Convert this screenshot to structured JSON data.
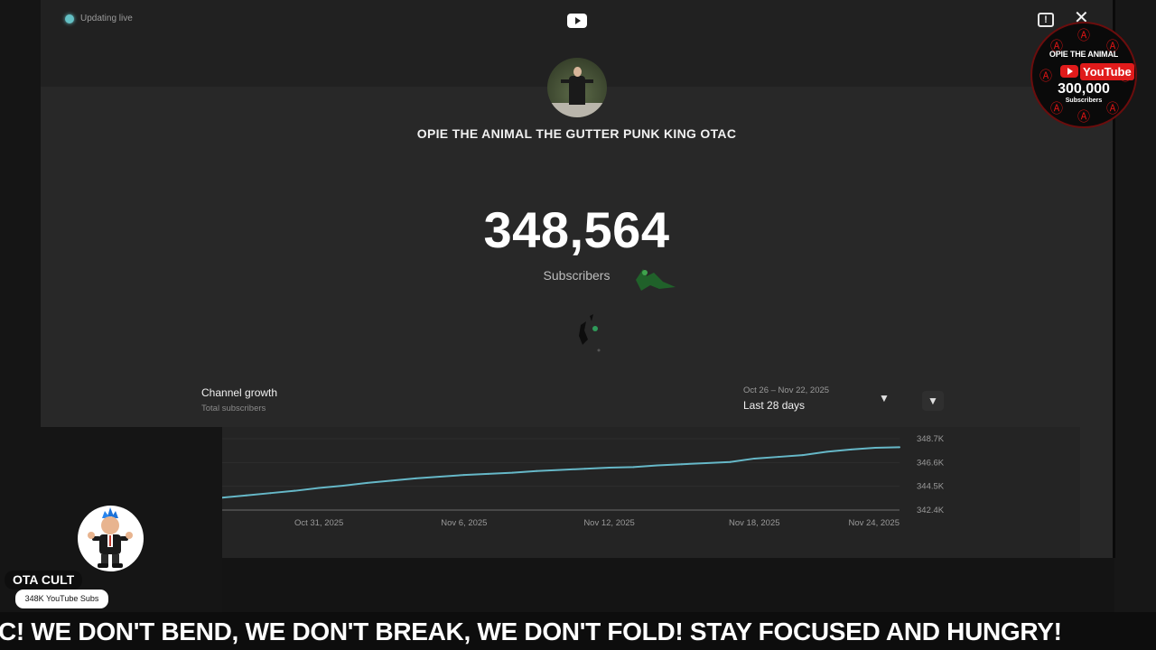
{
  "status": {
    "live_text": "Updating live"
  },
  "channel": {
    "name": "OPIE THE ANIMAL THE GUTTER PUNK KING OTAC",
    "subscriber_count": "348,564",
    "subscriber_label": "Subscribers"
  },
  "growth": {
    "title": "Channel growth",
    "subtitle": "Total subscribers",
    "date_range": "Oct 26 – Nov 22, 2025",
    "period": "Last 28 days"
  },
  "chart_data": {
    "type": "line",
    "x": [
      "Oct 27, 2025",
      "Oct 28, 2025",
      "Oct 29, 2025",
      "Oct 30, 2025",
      "Oct 31, 2025",
      "Nov 1, 2025",
      "Nov 2, 2025",
      "Nov 3, 2025",
      "Nov 4, 2025",
      "Nov 5, 2025",
      "Nov 6, 2025",
      "Nov 7, 2025",
      "Nov 8, 2025",
      "Nov 9, 2025",
      "Nov 10, 2025",
      "Nov 11, 2025",
      "Nov 12, 2025",
      "Nov 13, 2025",
      "Nov 14, 2025",
      "Nov 15, 2025",
      "Nov 16, 2025",
      "Nov 17, 2025",
      "Nov 18, 2025",
      "Nov 19, 2025",
      "Nov 20, 2025",
      "Nov 21, 2025",
      "Nov 22, 2025",
      "Nov 23, 2025",
      "Nov 24, 2025"
    ],
    "values": [
      343.5,
      343.7,
      343.9,
      344.1,
      344.35,
      344.55,
      344.8,
      345.0,
      345.2,
      345.35,
      345.5,
      345.6,
      345.7,
      345.85,
      345.95,
      346.05,
      346.15,
      346.2,
      346.35,
      346.45,
      346.55,
      346.65,
      346.95,
      347.1,
      347.25,
      347.55,
      347.75,
      347.9,
      347.95
    ],
    "x_ticks": [
      "Oct 31, 2025",
      "Nov 6, 2025",
      "Nov 12, 2025",
      "Nov 18, 2025",
      "Nov 24, 2025"
    ],
    "y_ticks": [
      "348.7K",
      "346.6K",
      "344.5K",
      "342.4K"
    ],
    "ylim": [
      342.4,
      348.7
    ],
    "line_color": "#66b8c8",
    "grid": true
  },
  "overlay": {
    "cam_name": "OTA CULT",
    "cam_badge": "348K YouTube Subs",
    "milestone": {
      "top_text": "OPIE THE ANIMAL",
      "platform_text": "YouTube",
      "count": "300,000",
      "label": "Subscribers"
    },
    "ticker": "C! WE DON'T BEND, WE DON'T BREAK, WE DON'T FOLD! STAY FOCUSED AND HUNGRY!"
  },
  "icons": {
    "youtube": "youtube-logo-icon",
    "feedback": "feedback-icon",
    "close": "close-icon",
    "chevron": "chevron-down-icon"
  }
}
